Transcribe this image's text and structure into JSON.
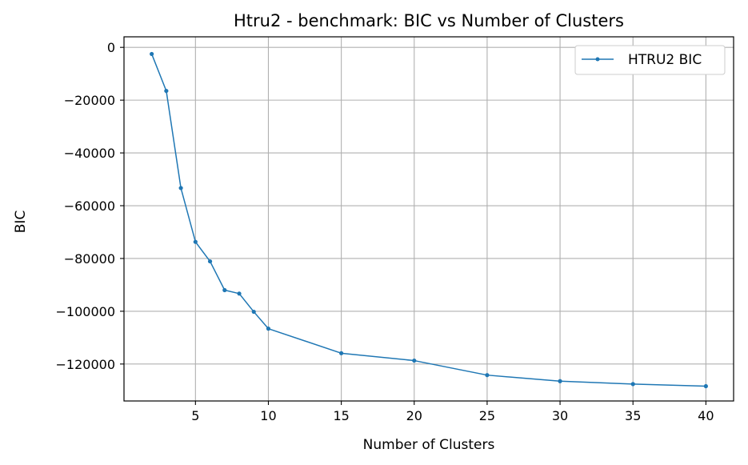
{
  "chart_data": {
    "type": "line",
    "title": "Htru2 - benchmark: BIC vs Number of Clusters",
    "xlabel": "Number of Clusters",
    "ylabel": "BIC",
    "xlim": [
      0.1,
      41.9
    ],
    "ylim": [
      -134000,
      4000
    ],
    "xticks": [
      5,
      10,
      15,
      20,
      25,
      30,
      35,
      40
    ],
    "yticks": [
      0,
      -20000,
      -40000,
      -60000,
      -80000,
      -100000,
      -120000
    ],
    "ytick_labels": [
      "0",
      "−20000",
      "−40000",
      "−60000",
      "−80000",
      "−100000",
      "−120000"
    ],
    "grid": true,
    "legend_position": "top-right",
    "color": "#1f77b4",
    "series": [
      {
        "name": "HTRU2 BIC",
        "x": [
          2,
          3,
          4,
          5,
          6,
          7,
          8,
          9,
          10,
          15,
          20,
          25,
          30,
          35,
          40
        ],
        "y": [
          -2500,
          -16500,
          -53300,
          -73700,
          -81100,
          -92000,
          -93300,
          -100200,
          -106600,
          -115900,
          -118700,
          -124200,
          -126500,
          -127600,
          -128400
        ]
      }
    ]
  }
}
